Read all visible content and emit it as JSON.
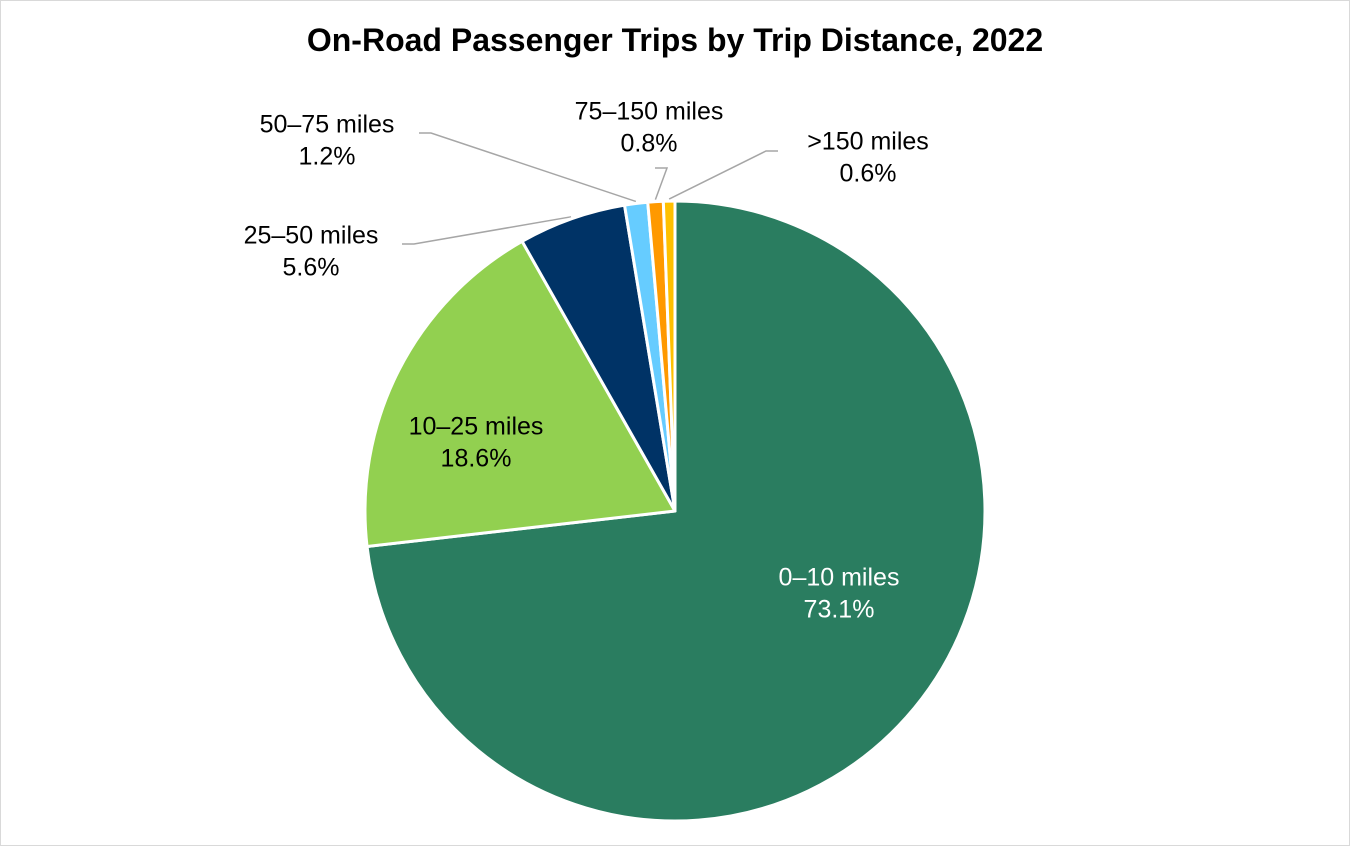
{
  "chart_data": {
    "type": "pie",
    "title": "On-Road Passenger Trips by Trip Distance, 2022",
    "slices": [
      {
        "label": "0–10 miles",
        "value": 73.1,
        "value_label": "73.1%",
        "color": "#2a7d60",
        "text_color": "#ffffff",
        "label_position": "inside"
      },
      {
        "label": "10–25 miles",
        "value": 18.6,
        "value_label": "18.6%",
        "color": "#92d050",
        "text_color": "#000000",
        "label_position": "inside"
      },
      {
        "label": "25–50 miles",
        "value": 5.6,
        "value_label": "5.6%",
        "color": "#003366",
        "text_color": "#000000",
        "label_position": "outside"
      },
      {
        "label": "50–75 miles",
        "value": 1.2,
        "value_label": "1.2%",
        "color": "#66ccff",
        "text_color": "#000000",
        "label_position": "outside"
      },
      {
        "label": "75–150 miles",
        "value": 0.8,
        "value_label": "0.8%",
        "color": "#ff9900",
        "text_color": "#000000",
        "label_position": "outside"
      },
      {
        "label": ">150 miles",
        "value": 0.6,
        "value_label": "0.6%",
        "color": "#ffc000",
        "text_color": "#000000",
        "label_position": "outside"
      }
    ],
    "start_angle": "12 o'clock",
    "direction": "clockwise",
    "legend": "none",
    "slice_border_color": "#ffffff",
    "leader_line_color": "#a6a6a6"
  }
}
